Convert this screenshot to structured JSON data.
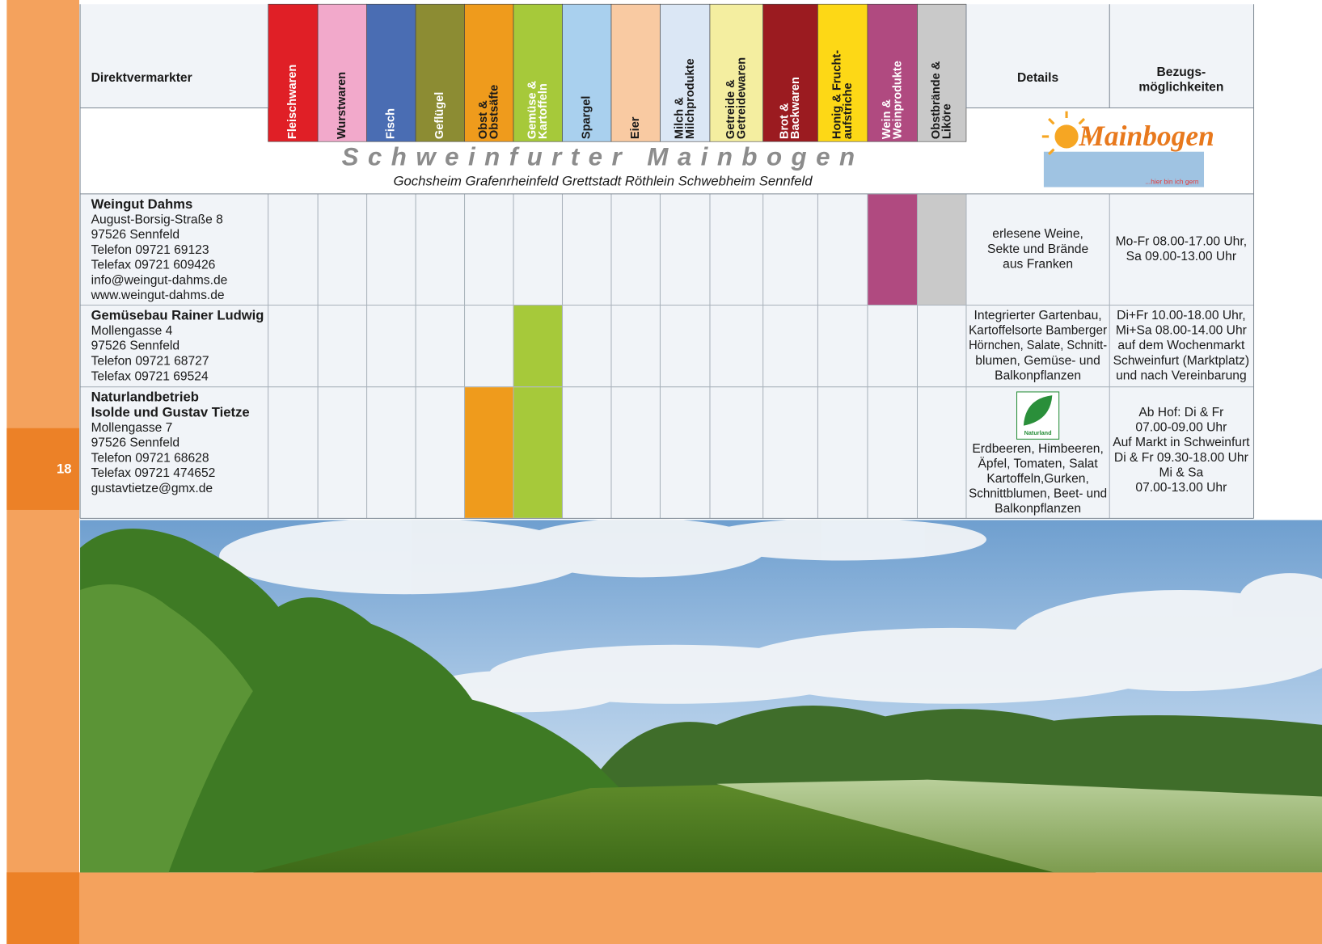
{
  "page_number": "18",
  "header": {
    "provider": "Direktvermarkter",
    "details": "Details",
    "availability": [
      "Bezugs-",
      "möglichkeiten"
    ],
    "categories": [
      {
        "label": [
          "Fleischwaren"
        ],
        "color": "#e01f26",
        "text_color": "#ffffff"
      },
      {
        "label": [
          "Wurstwaren"
        ],
        "color": "#f2a9cb",
        "text_color": "#1a1a1a"
      },
      {
        "label": [
          "Fisch"
        ],
        "color": "#4a6db3",
        "text_color": "#ffffff"
      },
      {
        "label": [
          "Geflügel"
        ],
        "color": "#8c8c33",
        "text_color": "#ffffff"
      },
      {
        "label": [
          "Obst &",
          "Obstsäfte"
        ],
        "color": "#ef9b1c",
        "text_color": "#1a1a1a"
      },
      {
        "label": [
          "Gemüse &",
          "Kartoffeln"
        ],
        "color": "#a6c93a",
        "text_color": "#ffffff"
      },
      {
        "label": [
          "Spargel"
        ],
        "color": "#a9d0ee",
        "text_color": "#1a1a1a"
      },
      {
        "label": [
          "Eier"
        ],
        "color": "#f9caa2",
        "text_color": "#1a1a1a"
      },
      {
        "label": [
          "Milch &",
          "Milchprodukte"
        ],
        "color": "#dbe7f5",
        "text_color": "#1a1a1a"
      },
      {
        "label": [
          "Getreide &",
          "Getreidewaren"
        ],
        "color": "#f4eea0",
        "text_color": "#1a1a1a"
      },
      {
        "label": [
          "Brot &",
          "Backwaren"
        ],
        "color": "#9b1b20",
        "text_color": "#ffffff"
      },
      {
        "label": [
          "Honig & Frucht-",
          "aufstriche"
        ],
        "color": "#fdd816",
        "text_color": "#1a1a1a"
      },
      {
        "label": [
          "Wein &",
          "Weinprodukte"
        ],
        "color": "#b04a80",
        "text_color": "#ffffff"
      },
      {
        "label": [
          "Obstbrände &",
          "Liköre"
        ],
        "color": "#c9c9c9",
        "text_color": "#1a1a1a"
      }
    ]
  },
  "banner": {
    "title": "Schweinfurter Mainbogen",
    "towns": "Gochsheim Grafenrheinfeld Grettstadt Röthlein Schwebheim Sennfeld",
    "logo_text": "Mainbogen",
    "logo_slogan": "...hier bin ich gern"
  },
  "rows": [
    {
      "name": [
        "Weingut Dahms"
      ],
      "address": [
        "August-Borsig-Straße 8",
        "97526 Sennfeld",
        "Telefon 09721 69123",
        "Telefax 09721 609426",
        "info@weingut-dahms.de",
        "www.weingut-dahms.de"
      ],
      "offers": [
        12,
        13
      ],
      "details": [
        "erlesene Weine,",
        "Sekte und Brände",
        "aus Franken"
      ],
      "availability": [
        "Mo-Fr 08.00-17.00 Uhr,",
        "Sa 09.00-13.00 Uhr"
      ]
    },
    {
      "name": [
        "Gemüsebau Rainer Ludwig"
      ],
      "address": [
        "Mollengasse 4",
        "97526 Sennfeld",
        "Telefon 09721 68727",
        "Telefax 09721 69524"
      ],
      "offers": [
        5
      ],
      "details": [
        "Integrierter Gartenbau,",
        "Kartoffelsorte Bamberger",
        "Hörnchen, Salate, Schnitt-",
        "blumen, Gemüse- und",
        "Balkonpflanzen"
      ],
      "availability": [
        "Di+Fr 10.00-18.00 Uhr,",
        "Mi+Sa 08.00-14.00 Uhr",
        "auf dem Wochenmarkt",
        "Schweinfurt (Marktplatz)",
        "und nach Vereinbarung"
      ]
    },
    {
      "name": [
        "Naturlandbetrieb",
        "Isolde und Gustav Tietze"
      ],
      "address": [
        "Mollengasse 7",
        "97526 Sennfeld",
        "Telefon 09721 68628",
        "Telefax 09721 474652",
        "gustavtietze@gmx.de"
      ],
      "offers": [
        4,
        5
      ],
      "badge": "Naturland",
      "details": [
        "Erdbeeren, Himbeeren,",
        "Äpfel, Tomaten, Salat",
        "Kartoffeln,Gurken,",
        "Schnittblumen, Beet- und",
        "Balkonpflanzen"
      ],
      "availability": [
        "Ab Hof: Di & Fr",
        "07.00-09.00 Uhr",
        "Auf Markt in Schweinfurt",
        "Di & Fr 09.30-18.00 Uhr",
        "Mi & Sa",
        "07.00-13.00 Uhr"
      ]
    }
  ]
}
